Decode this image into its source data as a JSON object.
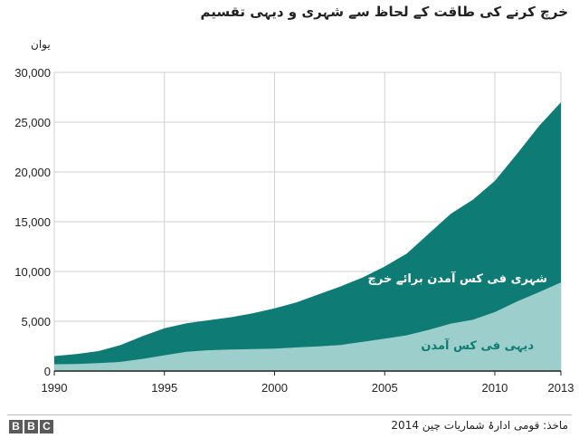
{
  "chart_data": {
    "type": "area",
    "title": "خرچ کرنے کی طاقت کے لحاظ سے شہری و دیہی تقسیم",
    "ylabel": "یوان",
    "xlabel": "",
    "xlim": [
      1990,
      2013
    ],
    "ylim": [
      0,
      30000
    ],
    "x_ticks": [
      "1990",
      "1995",
      "2000",
      "2005",
      "2010",
      "2013"
    ],
    "y_ticks": [
      "0",
      "5,000",
      "10,000",
      "15,000",
      "20,000",
      "25,000",
      "30,000"
    ],
    "x": [
      1990,
      1991,
      1992,
      1993,
      1994,
      1995,
      1996,
      1997,
      1998,
      1999,
      2000,
      2001,
      2002,
      2003,
      2004,
      2005,
      2006,
      2007,
      2008,
      2009,
      2010,
      2011,
      2012,
      2013
    ],
    "series": [
      {
        "name": "شہری فی کس آمدن برائے خرچ",
        "values": [
          1500,
          1700,
          2000,
          2600,
          3500,
          4300,
          4800,
          5100,
          5400,
          5800,
          6300,
          6900,
          7700,
          8500,
          9400,
          10500,
          11800,
          13800,
          15800,
          17200,
          19100,
          21800,
          24600,
          27000
        ],
        "color": "#0e7c74"
      },
      {
        "name": "دیہی فی کس آمدن",
        "values": [
          680,
          710,
          790,
          920,
          1220,
          1580,
          1930,
          2090,
          2160,
          2210,
          2250,
          2370,
          2480,
          2620,
          2940,
          3250,
          3590,
          4140,
          4760,
          5150,
          5920,
          6980,
          7920,
          8900
        ],
        "color": "#9ccfcc"
      }
    ],
    "grid": true
  },
  "source": "ماخذ: قومی ادارۂ شماریات چین 2014",
  "logo": [
    "B",
    "B",
    "C"
  ]
}
